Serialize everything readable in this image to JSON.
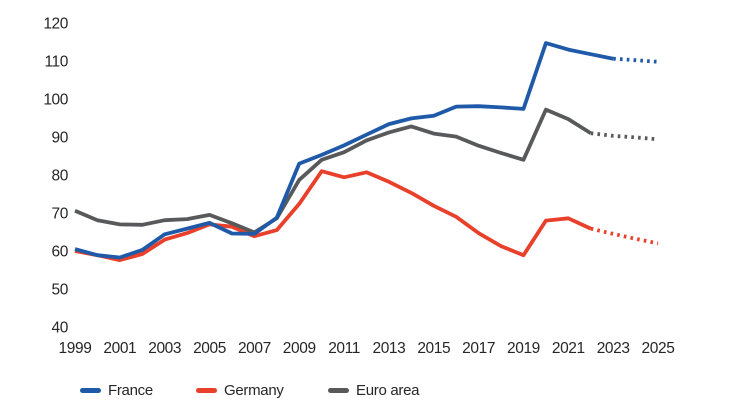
{
  "chart_data": {
    "type": "line",
    "title": "",
    "xlabel": "",
    "ylabel": "",
    "xlim": [
      1999,
      2025
    ],
    "ylim": [
      40,
      120
    ],
    "grid": false,
    "legend_position": "bottom",
    "projection_line_style": "dotted",
    "x": [
      1999,
      2000,
      2001,
      2002,
      2003,
      2004,
      2005,
      2006,
      2007,
      2008,
      2009,
      2010,
      2011,
      2012,
      2013,
      2014,
      2015,
      2016,
      2017,
      2018,
      2019,
      2020,
      2021,
      2022,
      2023,
      2024,
      2025
    ],
    "x_tick_labels": [
      "1999",
      "2001",
      "2003",
      "2005",
      "2007",
      "2009",
      "2011",
      "2013",
      "2015",
      "2017",
      "2019",
      "2021",
      "2023",
      "2025"
    ],
    "y_tick_labels": [
      "40",
      "50",
      "60",
      "70",
      "80",
      "90",
      "100",
      "110",
      "120"
    ],
    "y_ticks": [
      40,
      50,
      60,
      70,
      80,
      90,
      100,
      110,
      120
    ],
    "series": [
      {
        "name": "Germany",
        "color": "#e8402b",
        "solid_until": 2022,
        "values": [
          60.0,
          58.9,
          57.6,
          59.2,
          63.0,
          64.7,
          67.0,
          66.4,
          63.9,
          65.5,
          72.4,
          81.0,
          79.4,
          80.7,
          78.2,
          75.3,
          71.9,
          69.0,
          64.7,
          61.3,
          58.9,
          68.0,
          68.6,
          65.9,
          64.5,
          63.2,
          62.0
        ]
      },
      {
        "name": "Euro area",
        "color": "#58595b",
        "solid_until": 2022,
        "values": [
          70.6,
          68.1,
          67.0,
          66.9,
          68.1,
          68.4,
          69.5,
          67.3,
          64.9,
          68.6,
          78.7,
          84.0,
          86.0,
          89.1,
          91.2,
          92.8,
          90.9,
          90.1,
          87.7,
          85.8,
          84.0,
          97.2,
          94.7,
          91.0,
          90.3,
          89.9,
          89.4
        ]
      },
      {
        "name": "France",
        "color": "#1f5aa9",
        "solid_until": 2023,
        "values": [
          60.5,
          58.9,
          58.3,
          60.3,
          64.4,
          65.9,
          67.4,
          64.6,
          64.5,
          68.8,
          83.0,
          85.3,
          87.8,
          90.6,
          93.4,
          94.9,
          95.6,
          98.0,
          98.1,
          97.8,
          97.4,
          114.7,
          113.0,
          111.8,
          110.6,
          110.2,
          109.8
        ]
      }
    ],
    "legend_order": [
      "France",
      "Germany",
      "Euro area"
    ]
  }
}
